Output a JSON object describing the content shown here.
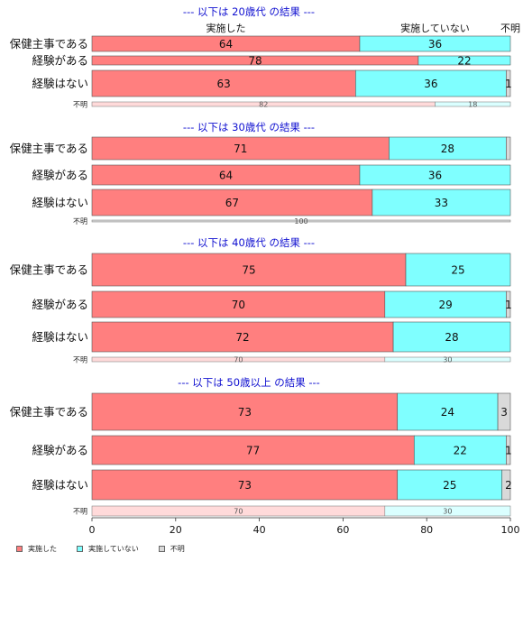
{
  "chart_data": {
    "type": "bar",
    "orientation": "horizontal",
    "stacked": true,
    "xlim": [
      0,
      100
    ],
    "x_ticks": [
      "0",
      "20",
      "40",
      "60",
      "80",
      "100"
    ],
    "column_headers": [
      "実施した",
      "実施していない",
      "不明"
    ],
    "legend": [
      "実施した",
      "実施していない",
      "不明"
    ],
    "legend_position": "bottom-left",
    "colors": {
      "done": "#FF7F7F",
      "not_done": "#7FFFFF",
      "unknown": "#D9D9D9",
      "done_light": "#FFDADA",
      "not_done_light": "#DAFFFF",
      "title": "#1010D0"
    },
    "groups": [
      {
        "title": "--- 以下は 20歳代 の結果 ---",
        "rows": [
          {
            "category": "保健主事である",
            "values": [
              64,
              36,
              0
            ],
            "labels": [
              "64",
              "36",
              ""
            ]
          },
          {
            "category": "経験がある",
            "values": [
              78,
              22,
              0
            ],
            "labels": [
              "78",
              "22",
              ""
            ]
          },
          {
            "category": "経験はない",
            "values": [
              63,
              36,
              1
            ],
            "labels": [
              "63",
              "36",
              "1"
            ]
          }
        ],
        "unknown_row": {
          "category": "不明",
          "values": [
            82,
            18,
            0
          ],
          "labels": [
            "82",
            "18",
            ""
          ]
        }
      },
      {
        "title": "--- 以下は 30歳代 の結果 ---",
        "rows": [
          {
            "category": "保健主事である",
            "values": [
              71,
              28,
              1
            ],
            "labels": [
              "71",
              "28",
              ""
            ]
          },
          {
            "category": "経験がある",
            "values": [
              64,
              36,
              0
            ],
            "labels": [
              "64",
              "36",
              ""
            ]
          },
          {
            "category": "経験はない",
            "values": [
              67,
              33,
              0
            ],
            "labels": [
              "67",
              "33",
              ""
            ]
          }
        ],
        "unknown_row": {
          "category": "不明",
          "values": [
            0,
            0,
            100
          ],
          "labels": [
            "",
            "",
            "100"
          ]
        }
      },
      {
        "title": "--- 以下は 40歳代 の結果 ---",
        "rows": [
          {
            "category": "保健主事である",
            "values": [
              75,
              25,
              0
            ],
            "labels": [
              "75",
              "25",
              ""
            ]
          },
          {
            "category": "経験がある",
            "values": [
              70,
              29,
              1
            ],
            "labels": [
              "70",
              "29",
              "1"
            ]
          },
          {
            "category": "経験はない",
            "values": [
              72,
              28,
              0
            ],
            "labels": [
              "72",
              "28",
              ""
            ]
          }
        ],
        "unknown_row": {
          "category": "不明",
          "values": [
            70,
            30,
            0
          ],
          "labels": [
            "70",
            "30",
            ""
          ]
        }
      },
      {
        "title": "--- 以下は 50歳以上 の結果 ---",
        "rows": [
          {
            "category": "保健主事である",
            "values": [
              73,
              24,
              3
            ],
            "labels": [
              "73",
              "24",
              "3"
            ]
          },
          {
            "category": "経験がある",
            "values": [
              77,
              22,
              1
            ],
            "labels": [
              "77",
              "22",
              "1"
            ]
          },
          {
            "category": "経験はない",
            "values": [
              73,
              25,
              2
            ],
            "labels": [
              "73",
              "25",
              "2"
            ]
          }
        ],
        "unknown_row": {
          "category": "不明",
          "values": [
            70,
            30,
            0
          ],
          "labels": [
            "70",
            "30",
            ""
          ]
        }
      }
    ]
  }
}
